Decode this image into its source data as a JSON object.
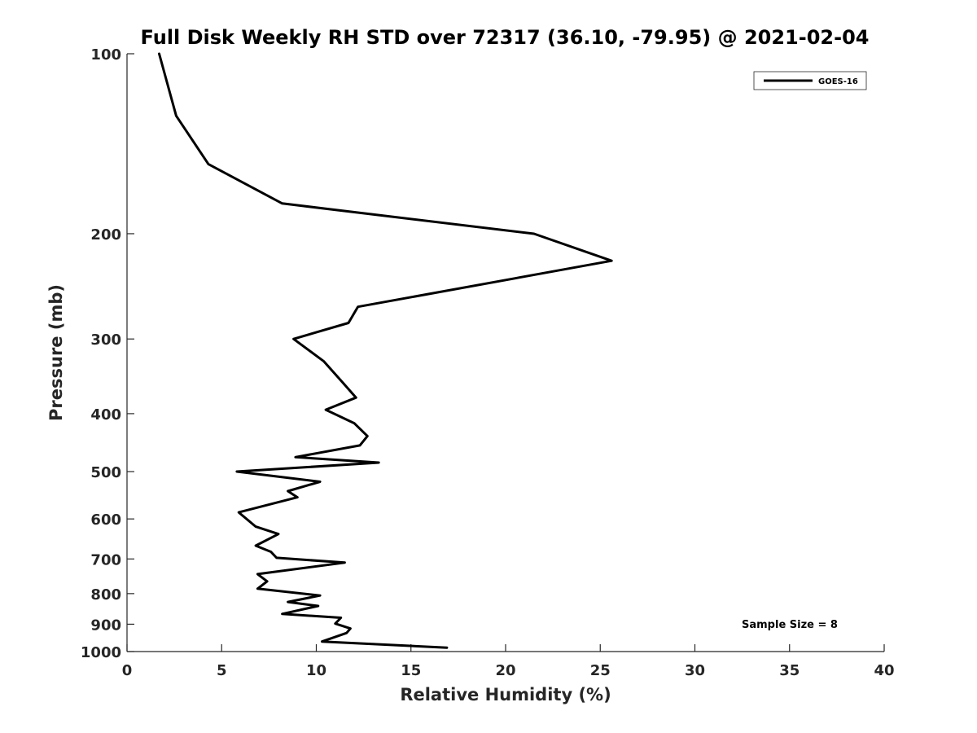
{
  "chart_data": {
    "type": "line",
    "title": "Full Disk Weekly RH STD over 72317 (36.10, -79.95) @ 2021-02-04",
    "xlabel": "Relative Humidity (%)",
    "ylabel": "Pressure (mb)",
    "xlim": [
      0,
      40
    ],
    "ylim": [
      100,
      1000
    ],
    "y_scale": "log",
    "y_reversed": true,
    "x_ticks": [
      "0",
      "5",
      "10",
      "15",
      "20",
      "25",
      "30",
      "35",
      "40"
    ],
    "y_ticks": [
      "100",
      "200",
      "300",
      "400",
      "500",
      "600",
      "700",
      "800",
      "900",
      "1000"
    ],
    "grid": false,
    "legend_position": "top-right",
    "annotation": "Sample Size = 8",
    "series": [
      {
        "name": "GOES-16",
        "color": "#000000",
        "x": [
          1.7,
          2.6,
          4.3,
          8.2,
          21.5,
          25.6,
          12.2,
          11.7,
          8.8,
          10.4,
          11.4,
          12.1,
          10.5,
          12.0,
          12.7,
          12.3,
          8.9,
          13.3,
          5.8,
          10.2,
          8.5,
          9.0,
          5.9,
          6.8,
          8.0,
          6.8,
          7.6,
          7.9,
          11.5,
          6.9,
          7.4,
          6.9,
          10.2,
          8.5,
          10.1,
          8.2,
          11.3,
          11.0,
          11.8,
          11.6,
          10.3,
          16.9
        ],
        "y": [
          100,
          127,
          153,
          178,
          200,
          222,
          265,
          282,
          300,
          327,
          355,
          376,
          394,
          415,
          436,
          452,
          473,
          483,
          500,
          520,
          539,
          552,
          585,
          618,
          636,
          665,
          681,
          697,
          710,
          742,
          763,
          785,
          806,
          826,
          839,
          865,
          878,
          898,
          915,
          931,
          962,
          985
        ]
      }
    ]
  }
}
